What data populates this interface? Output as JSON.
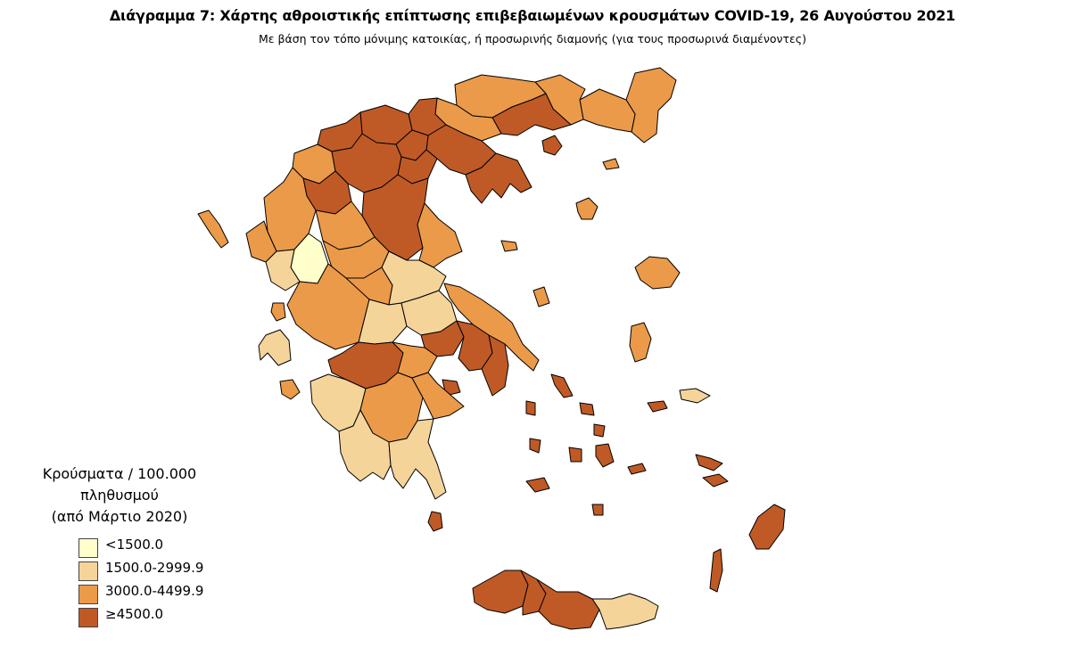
{
  "title": "Διάγραμμα 7: Χάρτης αθροιστικής επίπτωσης επιβεβαιωμένων κρουσμάτων COVID-19, 26 Αυγούστου 2021",
  "subtitle": "Με βάση τον τόπο μόνιμης κατοικίας, ή προσωρινής διαμονής (για τους προσωρινά διαμένοντες)",
  "legend": {
    "title_line1": "Κρούσματα / 100.000 πληθυσμού",
    "title_line2": "(από Μάρτιο 2020)",
    "classes": [
      {
        "label": "<1500.0",
        "color": "#ffffcc"
      },
      {
        "label": "1500.0-2999.9",
        "color": "#f5d49a"
      },
      {
        "label": "3000.0-4499.9",
        "color": "#eb9a49"
      },
      {
        "label": "≥4500.0",
        "color": "#bf5a26"
      }
    ]
  },
  "map": {
    "border_color": "#000000",
    "class_colors": {
      "c1": "#ffffcc",
      "c2": "#f5d49a",
      "c3": "#eb9a49",
      "c4": "#bf5a26"
    }
  }
}
